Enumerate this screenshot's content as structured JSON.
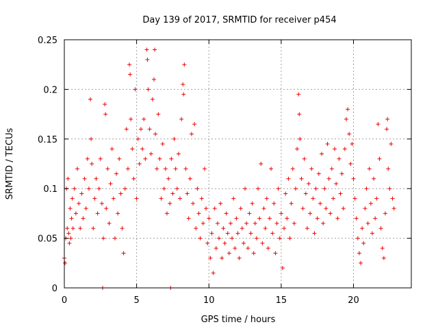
{
  "chart_data": {
    "type": "scatter",
    "title": "Day 139 of 2017, SRMTID for receiver p454",
    "xlabel": "GPS time / hours",
    "ylabel": "SRMTID / TECUs",
    "xlim": [
      0,
      24
    ],
    "ylim": [
      0,
      0.25
    ],
    "grid": true,
    "marker": "plus",
    "color": "#ee0000",
    "xticks": [
      0,
      5,
      10,
      15,
      20
    ],
    "xtick_labels": [
      "0",
      "5",
      "10",
      "15",
      "20"
    ],
    "yticks": [
      0,
      0.05,
      0.1,
      0.15,
      0.2,
      0.25
    ],
    "ytick_labels": [
      "0",
      "0.05",
      "0.1",
      "0.15",
      "0.2",
      "0.25"
    ],
    "series": [
      {
        "name": "SRMTID",
        "points": [
          [
            0.0,
            0.03
          ],
          [
            0.05,
            0.025
          ],
          [
            0.1,
            0.05
          ],
          [
            0.15,
            0.1
          ],
          [
            0.2,
            0.06
          ],
          [
            0.25,
            0.11
          ],
          [
            0.3,
            0.055
          ],
          [
            0.35,
            0.045
          ],
          [
            0.4,
            0.08
          ],
          [
            0.45,
            0.05
          ],
          [
            0.5,
            0.07
          ],
          [
            0.55,
            0.09
          ],
          [
            0.6,
            0.06
          ],
          [
            0.7,
            0.1
          ],
          [
            0.8,
            0.075
          ],
          [
            0.9,
            0.12
          ],
          [
            1.0,
            0.085
          ],
          [
            1.1,
            0.06
          ],
          [
            1.2,
            0.095
          ],
          [
            1.3,
            0.07
          ],
          [
            1.4,
            0.11
          ],
          [
            1.5,
            0.08
          ],
          [
            1.6,
            0.13
          ],
          [
            1.7,
            0.1
          ],
          [
            1.8,
            0.19
          ],
          [
            1.85,
            0.15
          ],
          [
            1.9,
            0.125
          ],
          [
            2.0,
            0.06
          ],
          [
            2.1,
            0.09
          ],
          [
            2.2,
            0.11
          ],
          [
            2.3,
            0.075
          ],
          [
            2.4,
            0.1
          ],
          [
            2.5,
            0.13
          ],
          [
            2.6,
            0.085
          ],
          [
            2.65,
            0.0
          ],
          [
            2.7,
            0.05
          ],
          [
            2.8,
            0.185
          ],
          [
            2.85,
            0.175
          ],
          [
            2.9,
            0.08
          ],
          [
            3.0,
            0.12
          ],
          [
            3.1,
            0.065
          ],
          [
            3.2,
            0.105
          ],
          [
            3.3,
            0.14
          ],
          [
            3.4,
            0.09
          ],
          [
            3.5,
            0.05
          ],
          [
            3.6,
            0.115
          ],
          [
            3.7,
            0.075
          ],
          [
            3.8,
            0.13
          ],
          [
            3.9,
            0.095
          ],
          [
            4.0,
            0.06
          ],
          [
            4.1,
            0.035
          ],
          [
            4.2,
            0.1
          ],
          [
            4.3,
            0.16
          ],
          [
            4.4,
            0.12
          ],
          [
            4.5,
            0.225
          ],
          [
            4.55,
            0.215
          ],
          [
            4.6,
            0.17
          ],
          [
            4.7,
            0.14
          ],
          [
            4.8,
            0.11
          ],
          [
            4.9,
            0.2
          ],
          [
            5.0,
            0.09
          ],
          [
            5.1,
            0.15
          ],
          [
            5.2,
            0.125
          ],
          [
            5.3,
            0.16
          ],
          [
            5.4,
            0.14
          ],
          [
            5.5,
            0.17
          ],
          [
            5.6,
            0.13
          ],
          [
            5.7,
            0.24
          ],
          [
            5.75,
            0.23
          ],
          [
            5.8,
            0.2
          ],
          [
            5.9,
            0.16
          ],
          [
            6.0,
            0.135
          ],
          [
            6.1,
            0.19
          ],
          [
            6.2,
            0.21
          ],
          [
            6.25,
            0.24
          ],
          [
            6.3,
            0.155
          ],
          [
            6.4,
            0.12
          ],
          [
            6.5,
            0.175
          ],
          [
            6.6,
            0.13
          ],
          [
            6.7,
            0.09
          ],
          [
            6.8,
            0.145
          ],
          [
            6.9,
            0.1
          ],
          [
            7.0,
            0.12
          ],
          [
            7.1,
            0.075
          ],
          [
            7.2,
            0.11
          ],
          [
            7.3,
            0.085
          ],
          [
            7.35,
            0.0
          ],
          [
            7.4,
            0.13
          ],
          [
            7.5,
            0.095
          ],
          [
            7.6,
            0.15
          ],
          [
            7.7,
            0.12
          ],
          [
            7.8,
            0.1
          ],
          [
            7.9,
            0.135
          ],
          [
            8.0,
            0.09
          ],
          [
            8.1,
            0.17
          ],
          [
            8.2,
            0.205
          ],
          [
            8.25,
            0.195
          ],
          [
            8.3,
            0.225
          ],
          [
            8.4,
            0.12
          ],
          [
            8.5,
            0.095
          ],
          [
            8.6,
            0.07
          ],
          [
            8.7,
            0.11
          ],
          [
            8.8,
            0.155
          ],
          [
            8.9,
            0.085
          ],
          [
            9.0,
            0.165
          ],
          [
            9.1,
            0.06
          ],
          [
            9.2,
            0.1
          ],
          [
            9.3,
            0.075
          ],
          [
            9.4,
            0.05
          ],
          [
            9.5,
            0.09
          ],
          [
            9.6,
            0.065
          ],
          [
            9.7,
            0.12
          ],
          [
            9.8,
            0.08
          ],
          [
            9.9,
            0.045
          ],
          [
            10.0,
            0.07
          ],
          [
            10.1,
            0.03
          ],
          [
            10.2,
            0.055
          ],
          [
            10.3,
            0.015
          ],
          [
            10.4,
            0.08
          ],
          [
            10.5,
            0.04
          ],
          [
            10.6,
            0.065
          ],
          [
            10.7,
            0.05
          ],
          [
            10.8,
            0.085
          ],
          [
            10.9,
            0.03
          ],
          [
            11.0,
            0.06
          ],
          [
            11.1,
            0.045
          ],
          [
            11.2,
            0.075
          ],
          [
            11.3,
            0.055
          ],
          [
            11.4,
            0.035
          ],
          [
            11.5,
            0.065
          ],
          [
            11.6,
            0.05
          ],
          [
            11.7,
            0.09
          ],
          [
            11.8,
            0.04
          ],
          [
            11.9,
            0.07
          ],
          [
            12.0,
            0.055
          ],
          [
            12.1,
            0.03
          ],
          [
            12.2,
            0.08
          ],
          [
            12.3,
            0.06
          ],
          [
            12.4,
            0.045
          ],
          [
            12.5,
            0.1
          ],
          [
            12.6,
            0.065
          ],
          [
            12.7,
            0.04
          ],
          [
            12.8,
            0.075
          ],
          [
            12.9,
            0.055
          ],
          [
            13.0,
            0.085
          ],
          [
            13.1,
            0.035
          ],
          [
            13.2,
            0.065
          ],
          [
            13.3,
            0.05
          ],
          [
            13.4,
            0.1
          ],
          [
            13.5,
            0.07
          ],
          [
            13.6,
            0.125
          ],
          [
            13.7,
            0.045
          ],
          [
            13.8,
            0.08
          ],
          [
            13.9,
            0.06
          ],
          [
            14.0,
            0.09
          ],
          [
            14.1,
            0.04
          ],
          [
            14.2,
            0.07
          ],
          [
            14.3,
            0.12
          ],
          [
            14.4,
            0.055
          ],
          [
            14.5,
            0.085
          ],
          [
            14.6,
            0.035
          ],
          [
            14.7,
            0.065
          ],
          [
            14.8,
            0.1
          ],
          [
            14.9,
            0.05
          ],
          [
            15.0,
            0.075
          ],
          [
            15.1,
            0.02
          ],
          [
            15.2,
            0.06
          ],
          [
            15.3,
            0.095
          ],
          [
            15.4,
            0.07
          ],
          [
            15.5,
            0.11
          ],
          [
            15.6,
            0.05
          ],
          [
            15.7,
            0.085
          ],
          [
            15.8,
            0.12
          ],
          [
            15.9,
            0.065
          ],
          [
            16.0,
            0.1
          ],
          [
            16.1,
            0.14
          ],
          [
            16.2,
            0.195
          ],
          [
            16.25,
            0.175
          ],
          [
            16.3,
            0.15
          ],
          [
            16.4,
            0.11
          ],
          [
            16.5,
            0.08
          ],
          [
            16.6,
            0.13
          ],
          [
            16.7,
            0.095
          ],
          [
            16.8,
            0.06
          ],
          [
            16.9,
            0.105
          ],
          [
            17.0,
            0.075
          ],
          [
            17.1,
            0.12
          ],
          [
            17.2,
            0.09
          ],
          [
            17.3,
            0.055
          ],
          [
            17.4,
            0.1
          ],
          [
            17.5,
            0.07
          ],
          [
            17.6,
            0.115
          ],
          [
            17.7,
            0.085
          ],
          [
            17.8,
            0.135
          ],
          [
            17.9,
            0.065
          ],
          [
            18.0,
            0.1
          ],
          [
            18.1,
            0.08
          ],
          [
            18.2,
            0.145
          ],
          [
            18.3,
            0.11
          ],
          [
            18.4,
            0.075
          ],
          [
            18.5,
            0.12
          ],
          [
            18.6,
            0.09
          ],
          [
            18.7,
            0.14
          ],
          [
            18.8,
            0.105
          ],
          [
            18.9,
            0.07
          ],
          [
            19.0,
            0.13
          ],
          [
            19.1,
            0.095
          ],
          [
            19.2,
            0.115
          ],
          [
            19.3,
            0.08
          ],
          [
            19.4,
            0.14
          ],
          [
            19.5,
            0.17
          ],
          [
            19.6,
            0.18
          ],
          [
            19.7,
            0.155
          ],
          [
            19.8,
            0.125
          ],
          [
            19.9,
            0.145
          ],
          [
            20.0,
            0.11
          ],
          [
            20.1,
            0.09
          ],
          [
            20.2,
            0.07
          ],
          [
            20.3,
            0.05
          ],
          [
            20.4,
            0.035
          ],
          [
            20.5,
            0.025
          ],
          [
            20.6,
            0.06
          ],
          [
            20.7,
            0.045
          ],
          [
            20.8,
            0.08
          ],
          [
            20.9,
            0.1
          ],
          [
            21.0,
            0.065
          ],
          [
            21.1,
            0.12
          ],
          [
            21.2,
            0.085
          ],
          [
            21.3,
            0.055
          ],
          [
            21.4,
            0.11
          ],
          [
            21.5,
            0.07
          ],
          [
            21.6,
            0.09
          ],
          [
            21.7,
            0.165
          ],
          [
            21.8,
            0.13
          ],
          [
            21.9,
            0.06
          ],
          [
            22.0,
            0.04
          ],
          [
            22.1,
            0.03
          ],
          [
            22.2,
            0.075
          ],
          [
            22.3,
            0.16
          ],
          [
            22.35,
            0.17
          ],
          [
            22.4,
            0.12
          ],
          [
            22.5,
            0.1
          ],
          [
            22.6,
            0.145
          ],
          [
            22.7,
            0.09
          ],
          [
            22.8,
            0.08
          ]
        ]
      }
    ]
  }
}
